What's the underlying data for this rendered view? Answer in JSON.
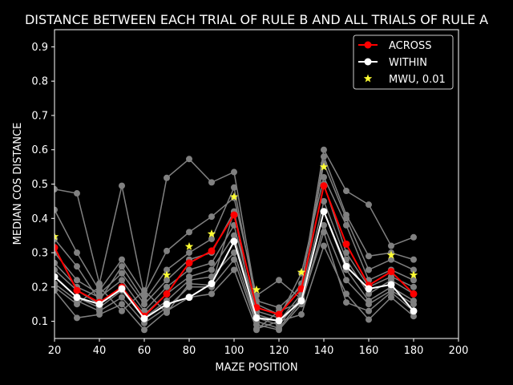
{
  "chart_data": {
    "type": "line",
    "title": "DISTANCE BETWEEN EACH TRIAL OF RULE B AND ALL TRIALS OF RULE A",
    "xlabel": "MAZE POSITION",
    "ylabel": "MEDIAN COS DISTANCE",
    "xlim": [
      20,
      200
    ],
    "ylim": [
      0.05,
      0.95
    ],
    "xticks": [
      20,
      40,
      60,
      80,
      100,
      120,
      140,
      160,
      180,
      200
    ],
    "yticks": [
      0.1,
      0.2,
      0.3,
      0.4,
      0.5,
      0.6,
      0.7,
      0.8,
      0.9
    ],
    "x": [
      20,
      30,
      40,
      50,
      60,
      70,
      80,
      90,
      100,
      110,
      120,
      130,
      140,
      150,
      160,
      170,
      180
    ],
    "background": "#000000",
    "trial_color": "#808080",
    "trials": [
      [
        0.485,
        0.473,
        0.21,
        0.495,
        0.175,
        0.518,
        0.573,
        0.505,
        0.535,
        0.16,
        0.14,
        0.2,
        0.6,
        0.48,
        0.44,
        0.32,
        0.345
      ],
      [
        0.425,
        0.3,
        0.19,
        0.28,
        0.18,
        0.305,
        0.36,
        0.405,
        0.46,
        0.175,
        0.22,
        0.165,
        0.58,
        0.41,
        0.29,
        0.3,
        0.28
      ],
      [
        0.34,
        0.26,
        0.16,
        0.26,
        0.16,
        0.25,
        0.3,
        0.34,
        0.49,
        0.15,
        0.12,
        0.21,
        0.56,
        0.4,
        0.25,
        0.28,
        0.25
      ],
      [
        0.3,
        0.22,
        0.18,
        0.24,
        0.15,
        0.22,
        0.28,
        0.3,
        0.42,
        0.13,
        0.11,
        0.24,
        0.52,
        0.38,
        0.22,
        0.25,
        0.22
      ],
      [
        0.27,
        0.2,
        0.17,
        0.22,
        0.13,
        0.2,
        0.25,
        0.27,
        0.38,
        0.12,
        0.1,
        0.18,
        0.5,
        0.3,
        0.2,
        0.23,
        0.2
      ],
      [
        0.25,
        0.19,
        0.15,
        0.2,
        0.12,
        0.18,
        0.23,
        0.25,
        0.35,
        0.11,
        0.09,
        0.17,
        0.45,
        0.28,
        0.18,
        0.22,
        0.18
      ],
      [
        0.23,
        0.17,
        0.14,
        0.19,
        0.11,
        0.16,
        0.22,
        0.23,
        0.3,
        0.1,
        0.08,
        0.16,
        0.42,
        0.25,
        0.16,
        0.2,
        0.16
      ],
      [
        0.21,
        0.16,
        0.13,
        0.17,
        0.095,
        0.14,
        0.2,
        0.2,
        0.28,
        0.09,
        0.075,
        0.15,
        0.38,
        0.22,
        0.15,
        0.19,
        0.15
      ],
      [
        0.19,
        0.11,
        0.12,
        0.15,
        0.075,
        0.13,
        0.17,
        0.18,
        0.25,
        0.078,
        0.1,
        0.12,
        0.32,
        0.18,
        0.105,
        0.17,
        0.115
      ],
      [
        0.2,
        0.15,
        0.2,
        0.13,
        0.19,
        0.125,
        0.21,
        0.205,
        0.42,
        0.075,
        0.13,
        0.155,
        0.36,
        0.155,
        0.13,
        0.185,
        0.13
      ]
    ],
    "series": [
      {
        "name": "ACROSS",
        "color": "#ff0000",
        "marker": "circle",
        "values": [
          0.315,
          0.19,
          0.155,
          0.2,
          0.115,
          0.18,
          0.27,
          0.305,
          0.41,
          0.14,
          0.12,
          0.195,
          0.495,
          0.325,
          0.205,
          0.245,
          0.18
        ]
      },
      {
        "name": "WITHIN",
        "color": "#ffffff",
        "marker": "circle",
        "values": [
          0.23,
          0.17,
          0.15,
          0.195,
          0.108,
          0.15,
          0.17,
          0.21,
          0.333,
          0.11,
          0.102,
          0.16,
          0.42,
          0.26,
          0.195,
          0.207,
          0.13
        ]
      }
    ],
    "significance": {
      "name": "MWU, 0.01",
      "color": "#ffff33",
      "marker": "star",
      "points": [
        {
          "x": 20,
          "y": 0.347
        },
        {
          "x": 70,
          "y": 0.235
        },
        {
          "x": 80,
          "y": 0.318
        },
        {
          "x": 90,
          "y": 0.355
        },
        {
          "x": 100,
          "y": 0.463
        },
        {
          "x": 110,
          "y": 0.192
        },
        {
          "x": 130,
          "y": 0.243
        },
        {
          "x": 140,
          "y": 0.55
        },
        {
          "x": 170,
          "y": 0.293
        },
        {
          "x": 180,
          "y": 0.235
        }
      ]
    },
    "legend": {
      "position": "upper-right",
      "entries": [
        "ACROSS",
        "WITHIN",
        "MWU, 0.01"
      ]
    },
    "grid": false
  }
}
